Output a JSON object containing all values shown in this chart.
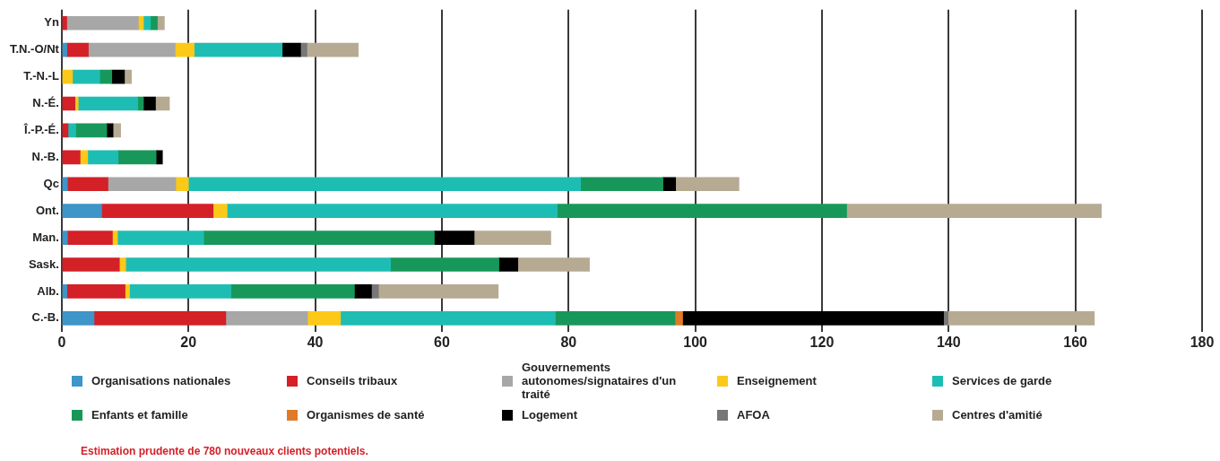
{
  "chart_data": {
    "type": "bar",
    "orientation": "horizontal",
    "stacked": true,
    "categories": [
      "Yn",
      "T.N.-O/Nt",
      "T.-N.-L",
      "N.-É.",
      "Î.-P.-É.",
      "N.-B.",
      "Qc",
      "Ont.",
      "Man.",
      "Sask.",
      "Alb.",
      "C.-B."
    ],
    "series": [
      {
        "name": "Organisations nationales",
        "color": "#3d95c8",
        "values": [
          null,
          0.8,
          null,
          null,
          null,
          null,
          0.9,
          6.3,
          0.9,
          null,
          0.8,
          5.1
        ]
      },
      {
        "name": "Conseils tribaux",
        "color": "#d42027",
        "values": [
          0.8,
          3.4,
          null,
          2.1,
          1.0,
          2.9,
          6.4,
          17.6,
          7.1,
          9.1,
          9.2,
          20.8
        ]
      },
      {
        "name": "Gouvernements autonomes/signataires d'un traité",
        "color": "#a7a7a7",
        "values": [
          11.3,
          13.7,
          null,
          null,
          null,
          null,
          10.7,
          null,
          null,
          null,
          null,
          12.9
        ]
      },
      {
        "name": "Enseignement",
        "color": "#fcc918",
        "values": [
          0.8,
          3.0,
          1.7,
          0.5,
          null,
          1.2,
          2.0,
          2.2,
          0.8,
          1.0,
          0.7,
          5.2
        ]
      },
      {
        "name": "Services de garde",
        "color": "#1ebdb3",
        "values": [
          1.1,
          13.9,
          4.3,
          9.4,
          1.2,
          4.8,
          61.9,
          52.1,
          13.6,
          41.8,
          16.0,
          33.9
        ]
      },
      {
        "name": "Enfants et famille",
        "color": "#17985a",
        "values": [
          1.1,
          null,
          1.9,
          0.9,
          4.9,
          6.0,
          13.0,
          45.7,
          36.4,
          17.1,
          19.5,
          18.9
        ]
      },
      {
        "name": "Organismes de santé",
        "color": "#e07a26",
        "values": [
          null,
          null,
          null,
          null,
          null,
          null,
          null,
          null,
          null,
          null,
          null,
          1.2
        ]
      },
      {
        "name": "Logement",
        "color": "#000000",
        "values": [
          null,
          2.9,
          2.0,
          1.9,
          1.0,
          1.0,
          2.0,
          null,
          6.3,
          3.0,
          2.7,
          41.2
        ]
      },
      {
        "name": "AFOA",
        "color": "#777777",
        "values": [
          null,
          1.0,
          null,
          null,
          null,
          null,
          null,
          null,
          null,
          null,
          1.1,
          0.7
        ]
      },
      {
        "name": "Centres d'amitié",
        "color": "#b6aa92",
        "values": [
          1.1,
          8.1,
          1.1,
          2.2,
          1.2,
          null,
          10.0,
          40.2,
          12.1,
          11.3,
          18.9,
          23.1
        ]
      }
    ],
    "xlim": [
      0,
      180
    ],
    "xticks": [
      0,
      20,
      40,
      60,
      80,
      100,
      120,
      140,
      160,
      180
    ],
    "grid": "x",
    "legend": "bottom",
    "annotations": [
      "Estimation prudente de 780 nouveaux clients potentiels."
    ]
  }
}
